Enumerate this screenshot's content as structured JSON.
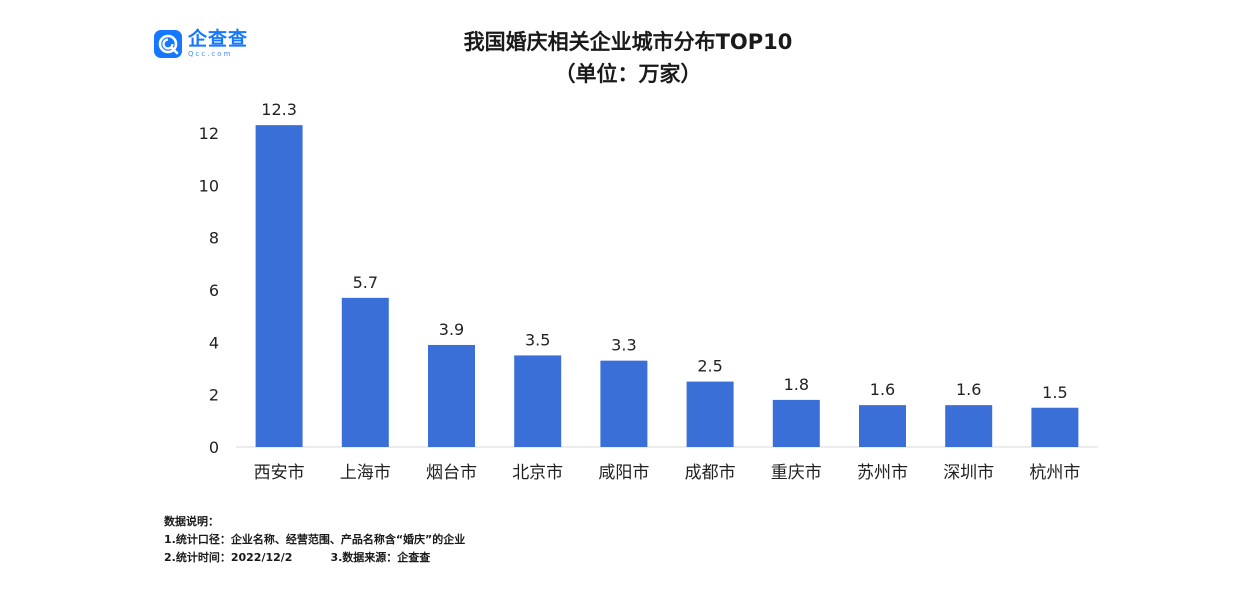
{
  "brand": {
    "name": "企查查",
    "domain": "Qcc.com",
    "color": "#1677ff"
  },
  "chart_data": {
    "type": "bar",
    "title": "我国婚庆相关企业城市分布TOP10",
    "subtitle": "（单位：万家）",
    "categories": [
      "西安市",
      "上海市",
      "烟台市",
      "北京市",
      "咸阳市",
      "成都市",
      "重庆市",
      "苏州市",
      "深圳市",
      "杭州市"
    ],
    "values": [
      12.3,
      5.7,
      3.9,
      3.5,
      3.3,
      2.5,
      1.8,
      1.6,
      1.6,
      1.5
    ],
    "value_labels": [
      "12.3",
      "5.7",
      "3.9",
      "3.5",
      "3.3",
      "2.5",
      "1.8",
      "1.6",
      "1.6",
      "1.5"
    ],
    "yticks": [
      0,
      2,
      4,
      6,
      8,
      10,
      12
    ],
    "ylim": [
      0,
      12
    ],
    "xlabel": "",
    "ylabel": "",
    "grid": false,
    "bar_color": "#3a6fd8"
  },
  "notes": {
    "heading": "数据说明：",
    "line1": "1.统计口径：企业名称、经营范围、产品名称含“婚庆”的企业",
    "line2a": "2.统计时间：2022/12/2",
    "line2b": "3.数据来源：企查查"
  }
}
